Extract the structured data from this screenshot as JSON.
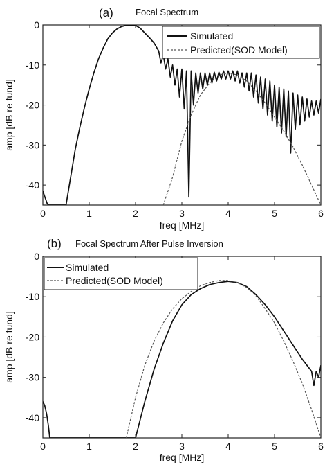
{
  "colors": {
    "simulated": "#111111",
    "predicted": "#555555",
    "axes": "#222222",
    "background": "#ffffff"
  },
  "chart_data": [
    {
      "type": "line",
      "panel_label": "(a)",
      "title": "Focal Spectrum",
      "xlabel": "freq [MHz]",
      "ylabel": "amp [dB re fund]",
      "xlim": [
        0,
        6
      ],
      "ylim": [
        -45,
        0
      ],
      "xticks": [
        0,
        1,
        2,
        3,
        4,
        5,
        6
      ],
      "yticks": [
        0,
        -10,
        -20,
        -30,
        -40
      ],
      "grid": false,
      "legend_placement": "top-right",
      "series": [
        {
          "name": "Simulated",
          "style": "solid",
          "x": [
            0.0,
            0.03,
            0.06,
            0.09,
            0.12,
            0.5,
            0.6,
            0.7,
            0.8,
            0.9,
            1.0,
            1.1,
            1.2,
            1.3,
            1.4,
            1.5,
            1.6,
            1.7,
            1.8,
            1.9,
            2.0,
            2.1,
            2.2,
            2.3,
            2.4,
            2.5,
            2.55,
            2.6,
            2.65,
            2.7,
            2.75,
            2.8,
            2.85,
            2.9,
            2.95,
            3.0,
            3.05,
            3.1,
            3.15,
            3.2,
            3.25,
            3.3,
            3.35,
            3.4,
            3.45,
            3.5,
            3.55,
            3.6,
            3.65,
            3.7,
            3.75,
            3.8,
            3.85,
            3.9,
            3.95,
            4.0,
            4.05,
            4.1,
            4.15,
            4.2,
            4.25,
            4.3,
            4.35,
            4.4,
            4.45,
            4.5,
            4.55,
            4.6,
            4.65,
            4.7,
            4.75,
            4.8,
            4.85,
            4.9,
            4.95,
            5.0,
            5.05,
            5.1,
            5.15,
            5.2,
            5.25,
            5.3,
            5.35,
            5.4,
            5.45,
            5.5,
            5.55,
            5.6,
            5.65,
            5.7,
            5.75,
            5.8,
            5.85,
            5.9,
            5.95,
            6.0
          ],
          "y": [
            -41.5,
            -42.5,
            -43.5,
            -44.5,
            -45,
            -45,
            -38,
            -31,
            -25.5,
            -20.5,
            -16,
            -12,
            -8.5,
            -5.8,
            -3.5,
            -2.0,
            -1.0,
            -0.4,
            -0.1,
            0.0,
            -0.1,
            -0.8,
            -2.0,
            -3.2,
            -4.5,
            -6.5,
            -9.5,
            -7.5,
            -11,
            -8.5,
            -13,
            -10,
            -15,
            -11,
            -18,
            -11,
            -21,
            -11.5,
            -43,
            -11.5,
            -20,
            -12,
            -17,
            -12,
            -16,
            -12,
            -15,
            -12,
            -14.5,
            -11.8,
            -14,
            -11.8,
            -13.5,
            -11.5,
            -13.5,
            -11.5,
            -13.5,
            -11.5,
            -14,
            -11.5,
            -14.5,
            -12,
            -15.5,
            -12,
            -16.5,
            -12,
            -18,
            -12.5,
            -19.5,
            -13,
            -21,
            -13.5,
            -22.5,
            -14,
            -24,
            -15,
            -25.5,
            -15.5,
            -27,
            -16,
            -28,
            -16.5,
            -32,
            -17,
            -26,
            -17.5,
            -25,
            -18,
            -24,
            -18.5,
            -23,
            -19,
            -22.5,
            -19,
            -22,
            -18.5
          ]
        },
        {
          "name": "Predicted(SOD Model)",
          "style": "dashed",
          "x": [
            2.6,
            2.8,
            3.0,
            3.2,
            3.4,
            3.6,
            3.8,
            4.0,
            4.2,
            4.4,
            4.6,
            4.8,
            5.0,
            5.2,
            5.4,
            5.6,
            5.8,
            6.0
          ],
          "y": [
            -45,
            -38,
            -29,
            -22.5,
            -17.5,
            -14.5,
            -12.5,
            -12,
            -12.5,
            -14,
            -16.5,
            -19.5,
            -23,
            -26.5,
            -30.5,
            -35,
            -40,
            -45
          ]
        }
      ]
    },
    {
      "type": "line",
      "panel_label": "(b)",
      "title": "Focal Spectrum After Pulse Inversion",
      "xlabel": "freq [MHz]",
      "ylabel": "amp [dB re fund]",
      "xlim": [
        0,
        6
      ],
      "ylim": [
        -45,
        0
      ],
      "xticks": [
        0,
        1,
        2,
        3,
        4,
        5,
        6
      ],
      "yticks": [
        0,
        -10,
        -20,
        -30,
        -40
      ],
      "grid": false,
      "legend_placement": "top-left",
      "series": [
        {
          "name": "Simulated",
          "style": "solid",
          "x": [
            0.0,
            0.04,
            0.08,
            0.12,
            0.15,
            2.0,
            2.2,
            2.4,
            2.6,
            2.8,
            3.0,
            3.2,
            3.4,
            3.6,
            3.8,
            4.0,
            4.2,
            4.4,
            4.6,
            4.8,
            5.0,
            5.2,
            5.4,
            5.6,
            5.7,
            5.8,
            5.85,
            5.9,
            5.95,
            6.0
          ],
          "y": [
            -36,
            -37,
            -39,
            -42,
            -45,
            -45,
            -36,
            -28,
            -21.5,
            -16,
            -12,
            -9.5,
            -8,
            -7,
            -6.5,
            -6.2,
            -6.5,
            -7.5,
            -9.5,
            -12,
            -15,
            -18.5,
            -22,
            -25.5,
            -27,
            -28.5,
            -32,
            -28.5,
            -30,
            -27
          ]
        },
        {
          "name": "Predicted(SOD Model)",
          "style": "dashed",
          "x": [
            1.8,
            2.0,
            2.2,
            2.4,
            2.6,
            2.8,
            3.0,
            3.2,
            3.4,
            3.6,
            3.8,
            4.0,
            4.2,
            4.4,
            4.6,
            4.8,
            5.0,
            5.2,
            5.4,
            5.6,
            5.8,
            6.0
          ],
          "y": [
            -45,
            -35,
            -27,
            -21,
            -16.5,
            -13,
            -10.5,
            -8.7,
            -7.3,
            -6.5,
            -6.0,
            -6.0,
            -6.5,
            -7.7,
            -9.8,
            -13,
            -16.5,
            -21,
            -26,
            -31.5,
            -38,
            -45
          ]
        }
      ]
    }
  ]
}
